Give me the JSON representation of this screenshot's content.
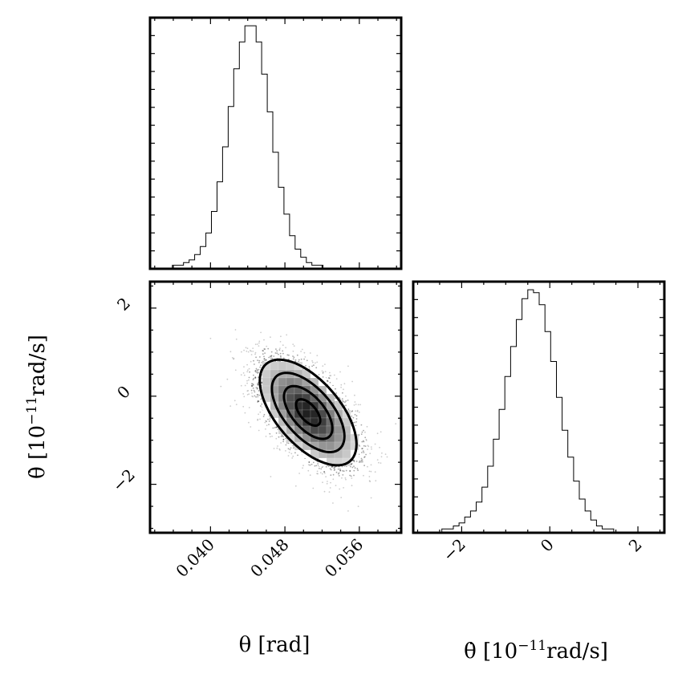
{
  "chart_data": [
    {
      "panel": "theta-marginal",
      "type": "histogram",
      "x_param": "theta",
      "xlim": [
        0.0335,
        0.0605
      ],
      "bins": {
        "start": 0.0335,
        "width": 0.0006,
        "counts": [
          0,
          0,
          0,
          0,
          1,
          1,
          2,
          3,
          5,
          8,
          13,
          21,
          32,
          45,
          60,
          74,
          84,
          90,
          90,
          84,
          72,
          58,
          43,
          30,
          20,
          12,
          7,
          4,
          2,
          1,
          1,
          0,
          0,
          0,
          0,
          0,
          0,
          0,
          0,
          0,
          0,
          0,
          0,
          0,
          0
        ]
      }
    },
    {
      "panel": "joint-theta-thetadot",
      "type": "scatter-density",
      "x_param": "theta",
      "y_param": "theta_dot",
      "xlim": [
        0.0335,
        0.0605
      ],
      "ylim": [
        -3.1,
        2.6
      ],
      "mean": [
        0.0505,
        -0.37
      ],
      "sigma": [
        0.0026,
        0.6
      ],
      "correlation": -0.6,
      "contour_levels_sigma": [
        0.5,
        1.0,
        1.5,
        2.0
      ]
    },
    {
      "panel": "thetadot-marginal",
      "type": "histogram",
      "x_param": "theta_dot",
      "xlim": [
        -3.1,
        2.6
      ],
      "bins": {
        "start": -3.1,
        "width": 0.13,
        "counts": [
          0,
          0,
          0,
          0,
          0,
          1,
          1,
          2,
          3,
          5,
          7,
          10,
          15,
          22,
          31,
          41,
          52,
          62,
          71,
          78,
          81,
          80,
          76,
          67,
          57,
          45,
          34,
          25,
          17,
          11,
          7,
          4,
          2,
          1,
          1,
          0,
          0,
          0,
          0,
          0,
          0,
          0,
          0,
          0
        ]
      }
    },
    {
      "axes": {
        "theta": {
          "ticks": [
            0.04,
            0.048,
            0.056
          ],
          "tick_labels": [
            "0.040",
            "0.048",
            "0.056"
          ],
          "label": "θ [rad]"
        },
        "theta_dot": {
          "ticks": [
            -2,
            0,
            2
          ],
          "tick_labels": [
            "−2",
            "0",
            "2"
          ],
          "label_symbol": "θ̇",
          "label_unit_open": "[10",
          "label_exponent": "−11",
          "label_unit_close": "rad/s]"
        }
      }
    }
  ]
}
